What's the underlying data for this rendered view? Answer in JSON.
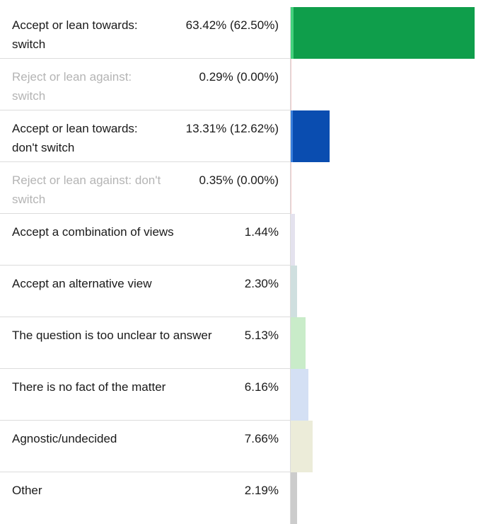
{
  "chart_data": {
    "type": "bar",
    "orientation": "horizontal",
    "scale_max_percent": 63.42,
    "rows": [
      {
        "label": "Accept or lean towards: switch",
        "value_text": "63.42% (62.50%)",
        "value": 63.42,
        "inner_value": 62.5,
        "muted": false,
        "colors": [
          "#43d17c",
          "#0f9e4b"
        ]
      },
      {
        "label": "Reject or lean against: switch",
        "value_text": "0.29% (0.00%)",
        "value": 0.29,
        "inner_value": 0.0,
        "muted": true,
        "colors": [
          "#f2c9c9",
          "#e8a0a0"
        ]
      },
      {
        "label": "Accept or lean towards: don't switch",
        "value_text": "13.31% (12.62%)",
        "value": 13.31,
        "inner_value": 12.62,
        "muted": false,
        "colors": [
          "#3a7fdc",
          "#0a4db0"
        ]
      },
      {
        "label": "Reject or lean against: don't switch",
        "value_text": "0.35% (0.00%)",
        "value": 0.35,
        "inner_value": 0.0,
        "muted": true,
        "colors": [
          "#f2c9c9",
          "#e8a0a0"
        ]
      },
      {
        "label": "Accept a combination of views",
        "value_text": "1.44%",
        "value": 1.44,
        "muted": false,
        "colors": [
          "#e4e2ee"
        ]
      },
      {
        "label": "Accept an alternative view",
        "value_text": "2.30%",
        "value": 2.3,
        "muted": false,
        "colors": [
          "#cfdfdf"
        ]
      },
      {
        "label": "The question is too unclear to answer",
        "value_text": "5.13%",
        "value": 5.13,
        "muted": false,
        "colors": [
          "#c9ecc9"
        ]
      },
      {
        "label": "There is no fact of the matter",
        "value_text": "6.16%",
        "value": 6.16,
        "muted": false,
        "colors": [
          "#d4e0f4"
        ]
      },
      {
        "label": "Agnostic/undecided",
        "value_text": "7.66%",
        "value": 7.66,
        "muted": false,
        "colors": [
          "#ececd9"
        ]
      },
      {
        "label": "Other",
        "value_text": "2.19%",
        "value": 2.19,
        "muted": false,
        "colors": [
          "#cccccc"
        ]
      }
    ]
  }
}
